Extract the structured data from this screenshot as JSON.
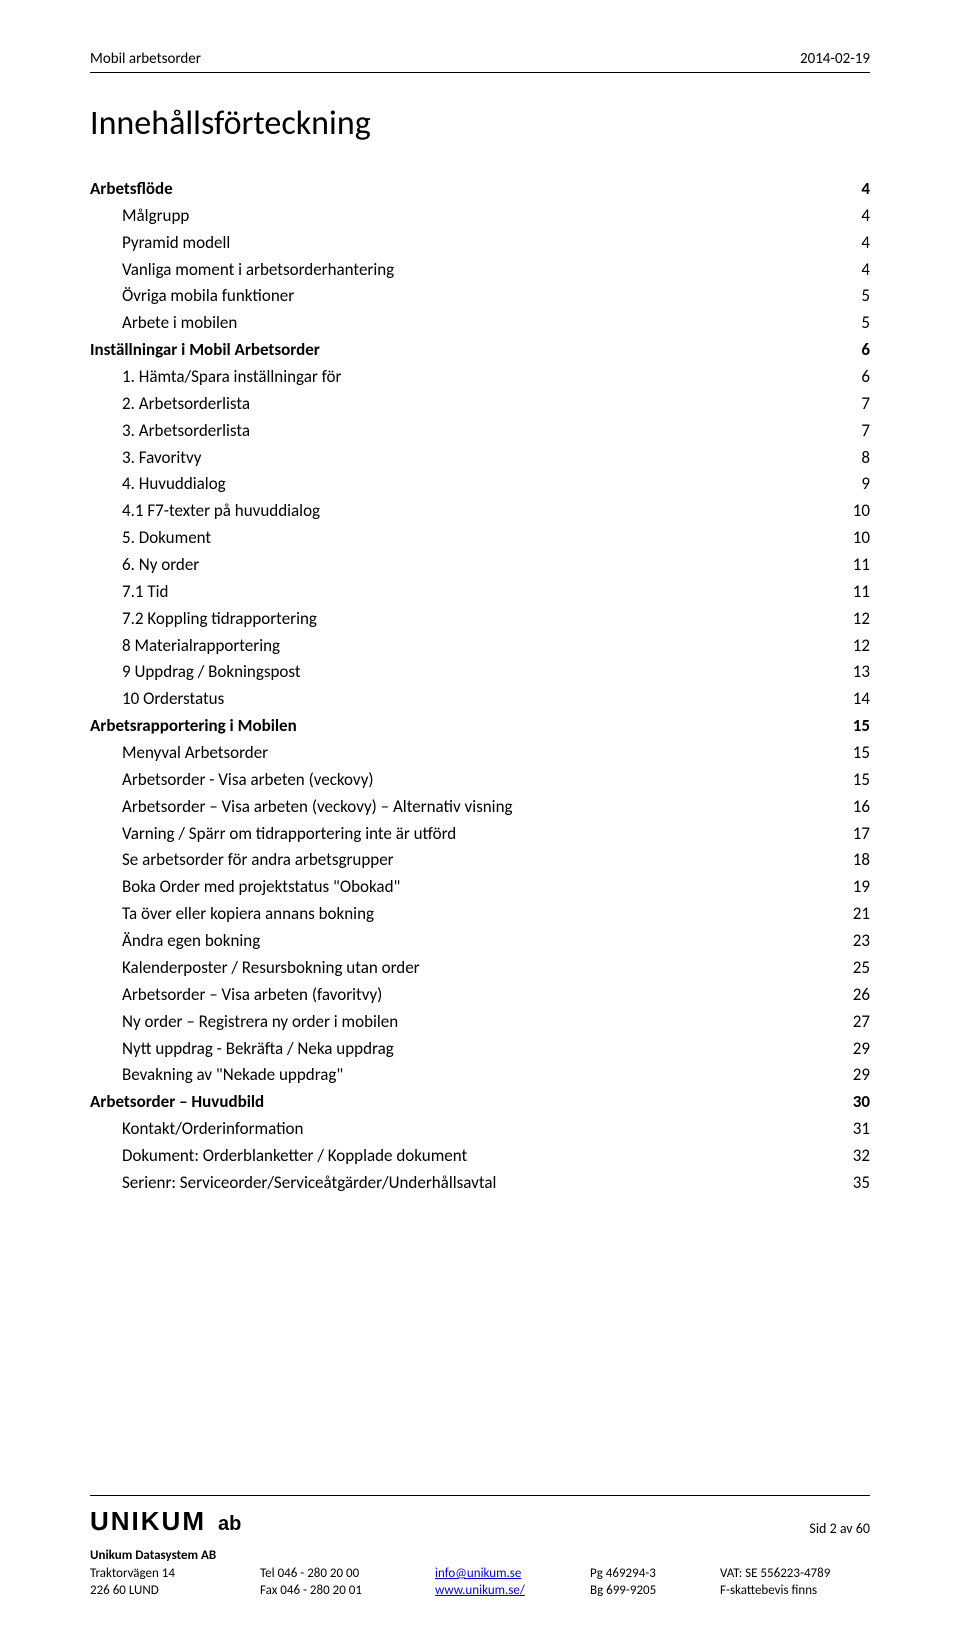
{
  "header": {
    "left": "Mobil arbetsorder",
    "right": "2014-02-19"
  },
  "title": "Innehållsförteckning",
  "toc": [
    {
      "label": "Arbetsflöde",
      "page": "4",
      "bold": true,
      "indent": 0
    },
    {
      "label": "Målgrupp",
      "page": "4",
      "bold": false,
      "indent": 1
    },
    {
      "label": "Pyramid modell",
      "page": "4",
      "bold": false,
      "indent": 1
    },
    {
      "label": "Vanliga moment i arbetsorderhantering",
      "page": "4",
      "bold": false,
      "indent": 1
    },
    {
      "label": "Övriga mobila funktioner",
      "page": "5",
      "bold": false,
      "indent": 1
    },
    {
      "label": "Arbete i mobilen",
      "page": "5",
      "bold": false,
      "indent": 1
    },
    {
      "label": "Inställningar i Mobil Arbetsorder",
      "page": "6",
      "bold": true,
      "indent": 0
    },
    {
      "label": "1. Hämta/Spara inställningar för",
      "page": "6",
      "bold": false,
      "indent": 1
    },
    {
      "label": "2. Arbetsorderlista",
      "page": "7",
      "bold": false,
      "indent": 1
    },
    {
      "label": "3. Arbetsorderlista",
      "page": "7",
      "bold": false,
      "indent": 1
    },
    {
      "label": "3. Favoritvy",
      "page": "8",
      "bold": false,
      "indent": 1
    },
    {
      "label": "4. Huvuddialog",
      "page": "9",
      "bold": false,
      "indent": 1
    },
    {
      "label": "4.1 F7-texter på huvuddialog",
      "page": "10",
      "bold": false,
      "indent": 1
    },
    {
      "label": "5. Dokument",
      "page": "10",
      "bold": false,
      "indent": 1
    },
    {
      "label": "6. Ny order",
      "page": "11",
      "bold": false,
      "indent": 1
    },
    {
      "label": "7.1 Tid",
      "page": "11",
      "bold": false,
      "indent": 1
    },
    {
      "label": "7.2 Koppling tidrapportering",
      "page": "12",
      "bold": false,
      "indent": 1
    },
    {
      "label": "8 Materialrapportering",
      "page": "12",
      "bold": false,
      "indent": 1
    },
    {
      "label": "9 Uppdrag / Bokningspost",
      "page": "13",
      "bold": false,
      "indent": 1
    },
    {
      "label": "10 Orderstatus",
      "page": "14",
      "bold": false,
      "indent": 1
    },
    {
      "label": "Arbetsrapportering i Mobilen",
      "page": "15",
      "bold": true,
      "indent": 0
    },
    {
      "label": "Menyval Arbetsorder",
      "page": "15",
      "bold": false,
      "indent": 1
    },
    {
      "label": "Arbetsorder - Visa arbeten (veckovy)",
      "page": "15",
      "bold": false,
      "indent": 1
    },
    {
      "label": "Arbetsorder – Visa arbeten (veckovy) – Alternativ visning",
      "page": "16",
      "bold": false,
      "indent": 1
    },
    {
      "label": "Varning / Spärr om tidrapportering inte är utförd",
      "page": "17",
      "bold": false,
      "indent": 1
    },
    {
      "label": "Se arbetsorder för andra arbetsgrupper",
      "page": "18",
      "bold": false,
      "indent": 1
    },
    {
      "label": "Boka Order med projektstatus \"Obokad\"",
      "page": "19",
      "bold": false,
      "indent": 1
    },
    {
      "label": "Ta över eller kopiera annans bokning",
      "page": "21",
      "bold": false,
      "indent": 1
    },
    {
      "label": "Ändra egen bokning",
      "page": "23",
      "bold": false,
      "indent": 1
    },
    {
      "label": "Kalenderposter / Resursbokning utan order",
      "page": "25",
      "bold": false,
      "indent": 1
    },
    {
      "label": "Arbetsorder – Visa arbeten (favoritvy)",
      "page": "26",
      "bold": false,
      "indent": 1
    },
    {
      "label": "Ny order – Registrera ny order i mobilen",
      "page": "27",
      "bold": false,
      "indent": 1
    },
    {
      "label": "Nytt uppdrag - Bekräfta / Neka uppdrag",
      "page": "29",
      "bold": false,
      "indent": 1
    },
    {
      "label": "Bevakning av \"Nekade uppdrag\"",
      "page": "29",
      "bold": false,
      "indent": 1
    },
    {
      "label": "Arbetsorder – Huvudbild",
      "page": "30",
      "bold": true,
      "indent": 0
    },
    {
      "label": "Kontakt/Orderinformation",
      "page": "31",
      "bold": false,
      "indent": 1
    },
    {
      "label": "Dokument: Orderblanketter / Kopplade dokument",
      "page": "32",
      "bold": false,
      "indent": 1
    },
    {
      "label": "Serienr: Serviceorder/Serviceåtgärder/Underhållsavtal",
      "page": "35",
      "bold": false,
      "indent": 1
    }
  ],
  "footer": {
    "logo_word": "UNIKUM",
    "logo_ab": "ab",
    "page_counter": "Sid 2 av 60",
    "company": "Unikum Datasystem AB",
    "col1": {
      "l1": "Traktorvägen 14",
      "l2": "226 60  LUND"
    },
    "col2": {
      "l1": "Tel  046 - 280 20 00",
      "l2": "Fax  046 - 280 20 01"
    },
    "col3": {
      "l1": "info@unikum.se",
      "l2": "www.unikum.se/"
    },
    "col4": {
      "l1": "Pg  469294-3",
      "l2": "Bg  699-9205"
    },
    "col5": {
      "l1": "VAT: SE 556223-4789",
      "l2": "F-skattebevis finns"
    }
  }
}
